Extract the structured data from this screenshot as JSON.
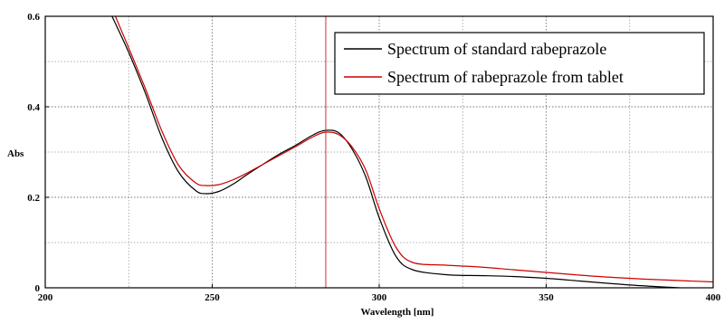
{
  "chart_data": {
    "type": "line",
    "title": "",
    "xlabel": "Wavelength [nm]",
    "ylabel": "Abs",
    "xlim": [
      200,
      400
    ],
    "ylim": [
      0,
      0.6
    ],
    "x_ticks": [
      200,
      250,
      300,
      350,
      400
    ],
    "x_tick_labels": [
      "200",
      "250",
      "300",
      "350",
      "400"
    ],
    "y_ticks": [
      0,
      0.2,
      0.4,
      0.6
    ],
    "y_tick_labels": [
      "0",
      "0.2",
      "0.4",
      "0.6"
    ],
    "grid": true,
    "legend_position": "top-right",
    "vertical_marker_x": 284,
    "colors": {
      "standard": "#000000",
      "tablet": "#cc0000",
      "marker": "#cc3333"
    },
    "series": [
      {
        "name": "Spectrum of standard rabeprazole",
        "color": "#000000",
        "x": [
          220,
          225,
          230,
          235,
          240,
          245,
          248,
          252,
          256,
          260,
          265,
          270,
          275,
          280,
          284,
          288,
          292,
          296,
          300,
          305,
          310,
          320,
          330,
          340,
          350,
          360,
          370,
          380,
          390
        ],
        "y": [
          0.6,
          0.52,
          0.43,
          0.33,
          0.255,
          0.215,
          0.208,
          0.213,
          0.228,
          0.248,
          0.272,
          0.295,
          0.315,
          0.337,
          0.348,
          0.342,
          0.305,
          0.245,
          0.155,
          0.07,
          0.04,
          0.029,
          0.027,
          0.025,
          0.021,
          0.015,
          0.009,
          0.004,
          0.0
        ]
      },
      {
        "name": "Spectrum of rabeprazole from tablet",
        "color": "#cc0000",
        "x": [
          221,
          225,
          230,
          235,
          240,
          245,
          248,
          252,
          256,
          260,
          265,
          270,
          275,
          280,
          284,
          288,
          292,
          296,
          300,
          305,
          310,
          320,
          330,
          340,
          350,
          360,
          370,
          380,
          390,
          400
        ],
        "y": [
          0.6,
          0.53,
          0.44,
          0.345,
          0.27,
          0.232,
          0.226,
          0.228,
          0.238,
          0.252,
          0.272,
          0.292,
          0.312,
          0.333,
          0.344,
          0.338,
          0.31,
          0.26,
          0.175,
          0.09,
          0.056,
          0.05,
          0.046,
          0.04,
          0.034,
          0.028,
          0.023,
          0.019,
          0.016,
          0.013
        ]
      }
    ]
  }
}
